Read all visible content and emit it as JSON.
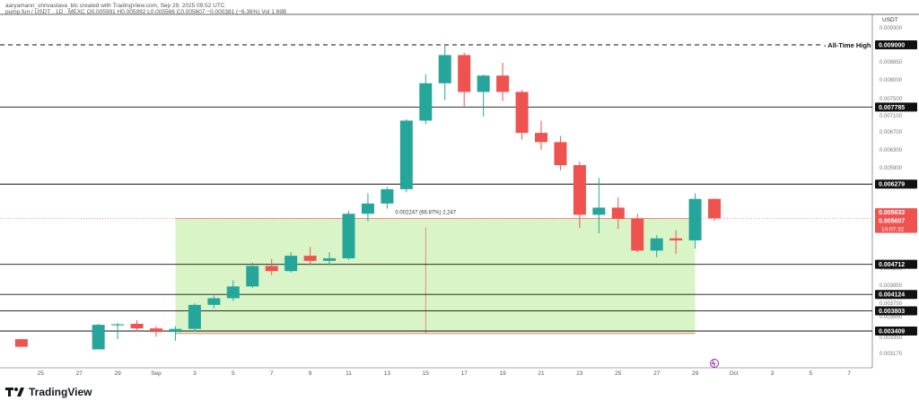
{
  "header": {
    "author": "aaryamann_shrivastava_blc created with TradingView.com, Sep 29, 2025 09:52 UTC",
    "ticker": "pump.fun / USDT · 1D · MEXC",
    "ohlc": "O0.005991  H0.005992  L0.005566  C0.005607  −0.000381 (−6.36%)  Vol 1.69B"
  },
  "brand": {
    "name": "TradingView",
    "icon": "tradingview-logo-icon"
  },
  "chart_data": {
    "type": "candlestick",
    "currency": "USDT",
    "x_ticks": [
      {
        "label": "25",
        "day": -6
      },
      {
        "label": "27",
        "day": -4
      },
      {
        "label": "29",
        "day": -2
      },
      {
        "label": "Sep",
        "day": 0
      },
      {
        "label": "3",
        "day": 2
      },
      {
        "label": "5",
        "day": 4
      },
      {
        "label": "7",
        "day": 6
      },
      {
        "label": "9",
        "day": 8
      },
      {
        "label": "11",
        "day": 10
      },
      {
        "label": "13",
        "day": 12
      },
      {
        "label": "15",
        "day": 14
      },
      {
        "label": "17",
        "day": 16
      },
      {
        "label": "19",
        "day": 18
      },
      {
        "label": "21",
        "day": 20
      },
      {
        "label": "23",
        "day": 22
      },
      {
        "label": "25",
        "day": 24
      },
      {
        "label": "27",
        "day": 26
      },
      {
        "label": "29",
        "day": 28
      },
      {
        "label": "Oct",
        "day": 30
      },
      {
        "label": "3",
        "day": 32
      },
      {
        "label": "5",
        "day": 34
      },
      {
        "label": "7",
        "day": 36
      }
    ],
    "y_ticks": [
      "0.009300",
      "0.008850",
      "0.008000",
      "0.007500",
      "0.007100",
      "0.006700",
      "0.006300",
      "0.005900",
      "0.005100",
      "0.004850",
      "0.004200",
      "0.003950",
      "0.003700",
      "0.003550",
      "0.003350",
      "0.003170"
    ],
    "horizontal_levels": [
      {
        "value": 0.009,
        "label": "0.009000",
        "style": "dashed",
        "annotation": "All-Time High"
      },
      {
        "value": 0.007785,
        "label": "0.007785",
        "style": "solid"
      },
      {
        "value": 0.006279,
        "label": "0.006279",
        "style": "solid"
      },
      {
        "value": 0.004712,
        "label": "0.004712",
        "style": "solid"
      },
      {
        "value": 0.004124,
        "label": "0.004124",
        "style": "solid"
      },
      {
        "value": 0.003803,
        "label": "0.003803",
        "style": "solid"
      },
      {
        "value": 0.003409,
        "label": "0.003409",
        "style": "solid"
      }
    ],
    "price_badges": [
      {
        "value": 0.005633,
        "label": "0.005633",
        "color": "#ef5350"
      },
      {
        "value": 0.005607,
        "label": "0.005607",
        "sublabel": "14:07:32",
        "color": "#ef5350"
      }
    ],
    "measure_box": {
      "from_day": 1,
      "to_day": 28,
      "low": 0.00336,
      "high": 0.005607,
      "label": "0.002247 (66.87%) 2,247",
      "mid_day": 14
    },
    "candles": [
      {
        "day": -7,
        "o": 0.00325,
        "h": 0.00325,
        "l": 0.0031,
        "c": 0.0031
      },
      {
        "day": -3,
        "o": 0.00305,
        "h": 0.00355,
        "l": 0.00305,
        "c": 0.00353
      },
      {
        "day": -2,
        "o": 0.00352,
        "h": 0.00357,
        "l": 0.00325,
        "c": 0.00354
      },
      {
        "day": -1,
        "o": 0.00355,
        "h": 0.00362,
        "l": 0.0034,
        "c": 0.00346
      },
      {
        "day": 0,
        "o": 0.00346,
        "h": 0.0035,
        "l": 0.0033,
        "c": 0.00339
      },
      {
        "day": 1,
        "o": 0.00339,
        "h": 0.0035,
        "l": 0.00322,
        "c": 0.00345
      },
      {
        "day": 2,
        "o": 0.00345,
        "h": 0.00395,
        "l": 0.0034,
        "c": 0.00392
      },
      {
        "day": 3,
        "o": 0.00392,
        "h": 0.0041,
        "l": 0.00385,
        "c": 0.00405
      },
      {
        "day": 4,
        "o": 0.00405,
        "h": 0.0044,
        "l": 0.004,
        "c": 0.00428
      },
      {
        "day": 5,
        "o": 0.00428,
        "h": 0.00475,
        "l": 0.00425,
        "c": 0.00468
      },
      {
        "day": 6,
        "o": 0.00468,
        "h": 0.00482,
        "l": 0.0045,
        "c": 0.00458
      },
      {
        "day": 7,
        "o": 0.00458,
        "h": 0.00495,
        "l": 0.00455,
        "c": 0.00488
      },
      {
        "day": 8,
        "o": 0.00488,
        "h": 0.00505,
        "l": 0.0047,
        "c": 0.00478
      },
      {
        "day": 9,
        "o": 0.00478,
        "h": 0.00495,
        "l": 0.0047,
        "c": 0.00483
      },
      {
        "day": 10,
        "o": 0.00483,
        "h": 0.00575,
        "l": 0.0048,
        "c": 0.0057
      },
      {
        "day": 11,
        "o": 0.0057,
        "h": 0.0061,
        "l": 0.00555,
        "c": 0.0059
      },
      {
        "day": 12,
        "o": 0.0059,
        "h": 0.00622,
        "l": 0.0058,
        "c": 0.00618
      },
      {
        "day": 13,
        "o": 0.00618,
        "h": 0.00755,
        "l": 0.00612,
        "c": 0.00752
      },
      {
        "day": 14,
        "o": 0.00752,
        "h": 0.00842,
        "l": 0.00745,
        "c": 0.00825
      },
      {
        "day": 15,
        "o": 0.00825,
        "h": 0.009,
        "l": 0.00792,
        "c": 0.0088
      },
      {
        "day": 16,
        "o": 0.0088,
        "h": 0.00885,
        "l": 0.0078,
        "c": 0.00808
      },
      {
        "day": 17,
        "o": 0.00808,
        "h": 0.00842,
        "l": 0.0076,
        "c": 0.0084
      },
      {
        "day": 18,
        "o": 0.0084,
        "h": 0.00865,
        "l": 0.0079,
        "c": 0.00808
      },
      {
        "day": 19,
        "o": 0.00808,
        "h": 0.00812,
        "l": 0.00715,
        "c": 0.00728
      },
      {
        "day": 20,
        "o": 0.00728,
        "h": 0.00752,
        "l": 0.00695,
        "c": 0.0071
      },
      {
        "day": 21,
        "o": 0.0071,
        "h": 0.00722,
        "l": 0.00655,
        "c": 0.00665
      },
      {
        "day": 22,
        "o": 0.00665,
        "h": 0.00672,
        "l": 0.00542,
        "c": 0.00568
      },
      {
        "day": 23,
        "o": 0.00568,
        "h": 0.0064,
        "l": 0.00532,
        "c": 0.00582
      },
      {
        "day": 24,
        "o": 0.00582,
        "h": 0.00602,
        "l": 0.0054,
        "c": 0.0056
      },
      {
        "day": 25,
        "o": 0.0056,
        "h": 0.0057,
        "l": 0.00495,
        "c": 0.00498
      },
      {
        "day": 26,
        "o": 0.00498,
        "h": 0.00528,
        "l": 0.00485,
        "c": 0.00522
      },
      {
        "day": 27,
        "o": 0.00522,
        "h": 0.00538,
        "l": 0.00492,
        "c": 0.00518
      },
      {
        "day": 28,
        "o": 0.00518,
        "h": 0.0061,
        "l": 0.00502,
        "c": 0.00599
      },
      {
        "day": 29,
        "o": 0.00599,
        "h": 0.006,
        "l": 0.00556,
        "c": 0.00561
      }
    ],
    "up_color": "#26a69a",
    "down_color": "#ef5350",
    "measure_fill": "#d9f5c8",
    "measure_line": "#e57373"
  }
}
